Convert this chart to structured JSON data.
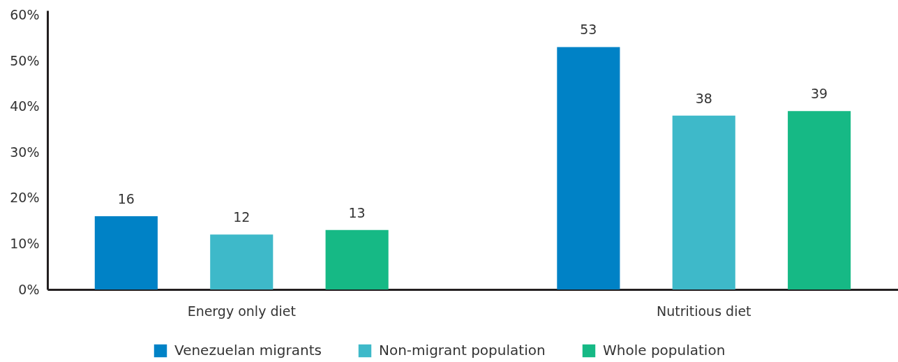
{
  "chart_data": {
    "type": "bar",
    "categories": [
      "Energy only diet",
      "Nutritious diet"
    ],
    "series": [
      {
        "name": "Venezuelan migrants",
        "color": "#0082c6",
        "values": [
          16,
          53
        ]
      },
      {
        "name": "Non-migrant population",
        "color": "#3eb9c9",
        "values": [
          12,
          38
        ]
      },
      {
        "name": "Whole population",
        "color": "#16b985",
        "values": [
          13,
          39
        ]
      }
    ],
    "ylim": [
      0,
      61
    ],
    "yticks": [
      {
        "value": 0,
        "label": "0%"
      },
      {
        "value": 10,
        "label": "10%"
      },
      {
        "value": 20,
        "label": "20%"
      },
      {
        "value": 30,
        "label": "30%"
      },
      {
        "value": 40,
        "label": "40%"
      },
      {
        "value": 50,
        "label": "50%"
      },
      {
        "value": 60,
        "label": "60%"
      }
    ],
    "grid": false,
    "legend": "bottom",
    "data_labels": true
  }
}
